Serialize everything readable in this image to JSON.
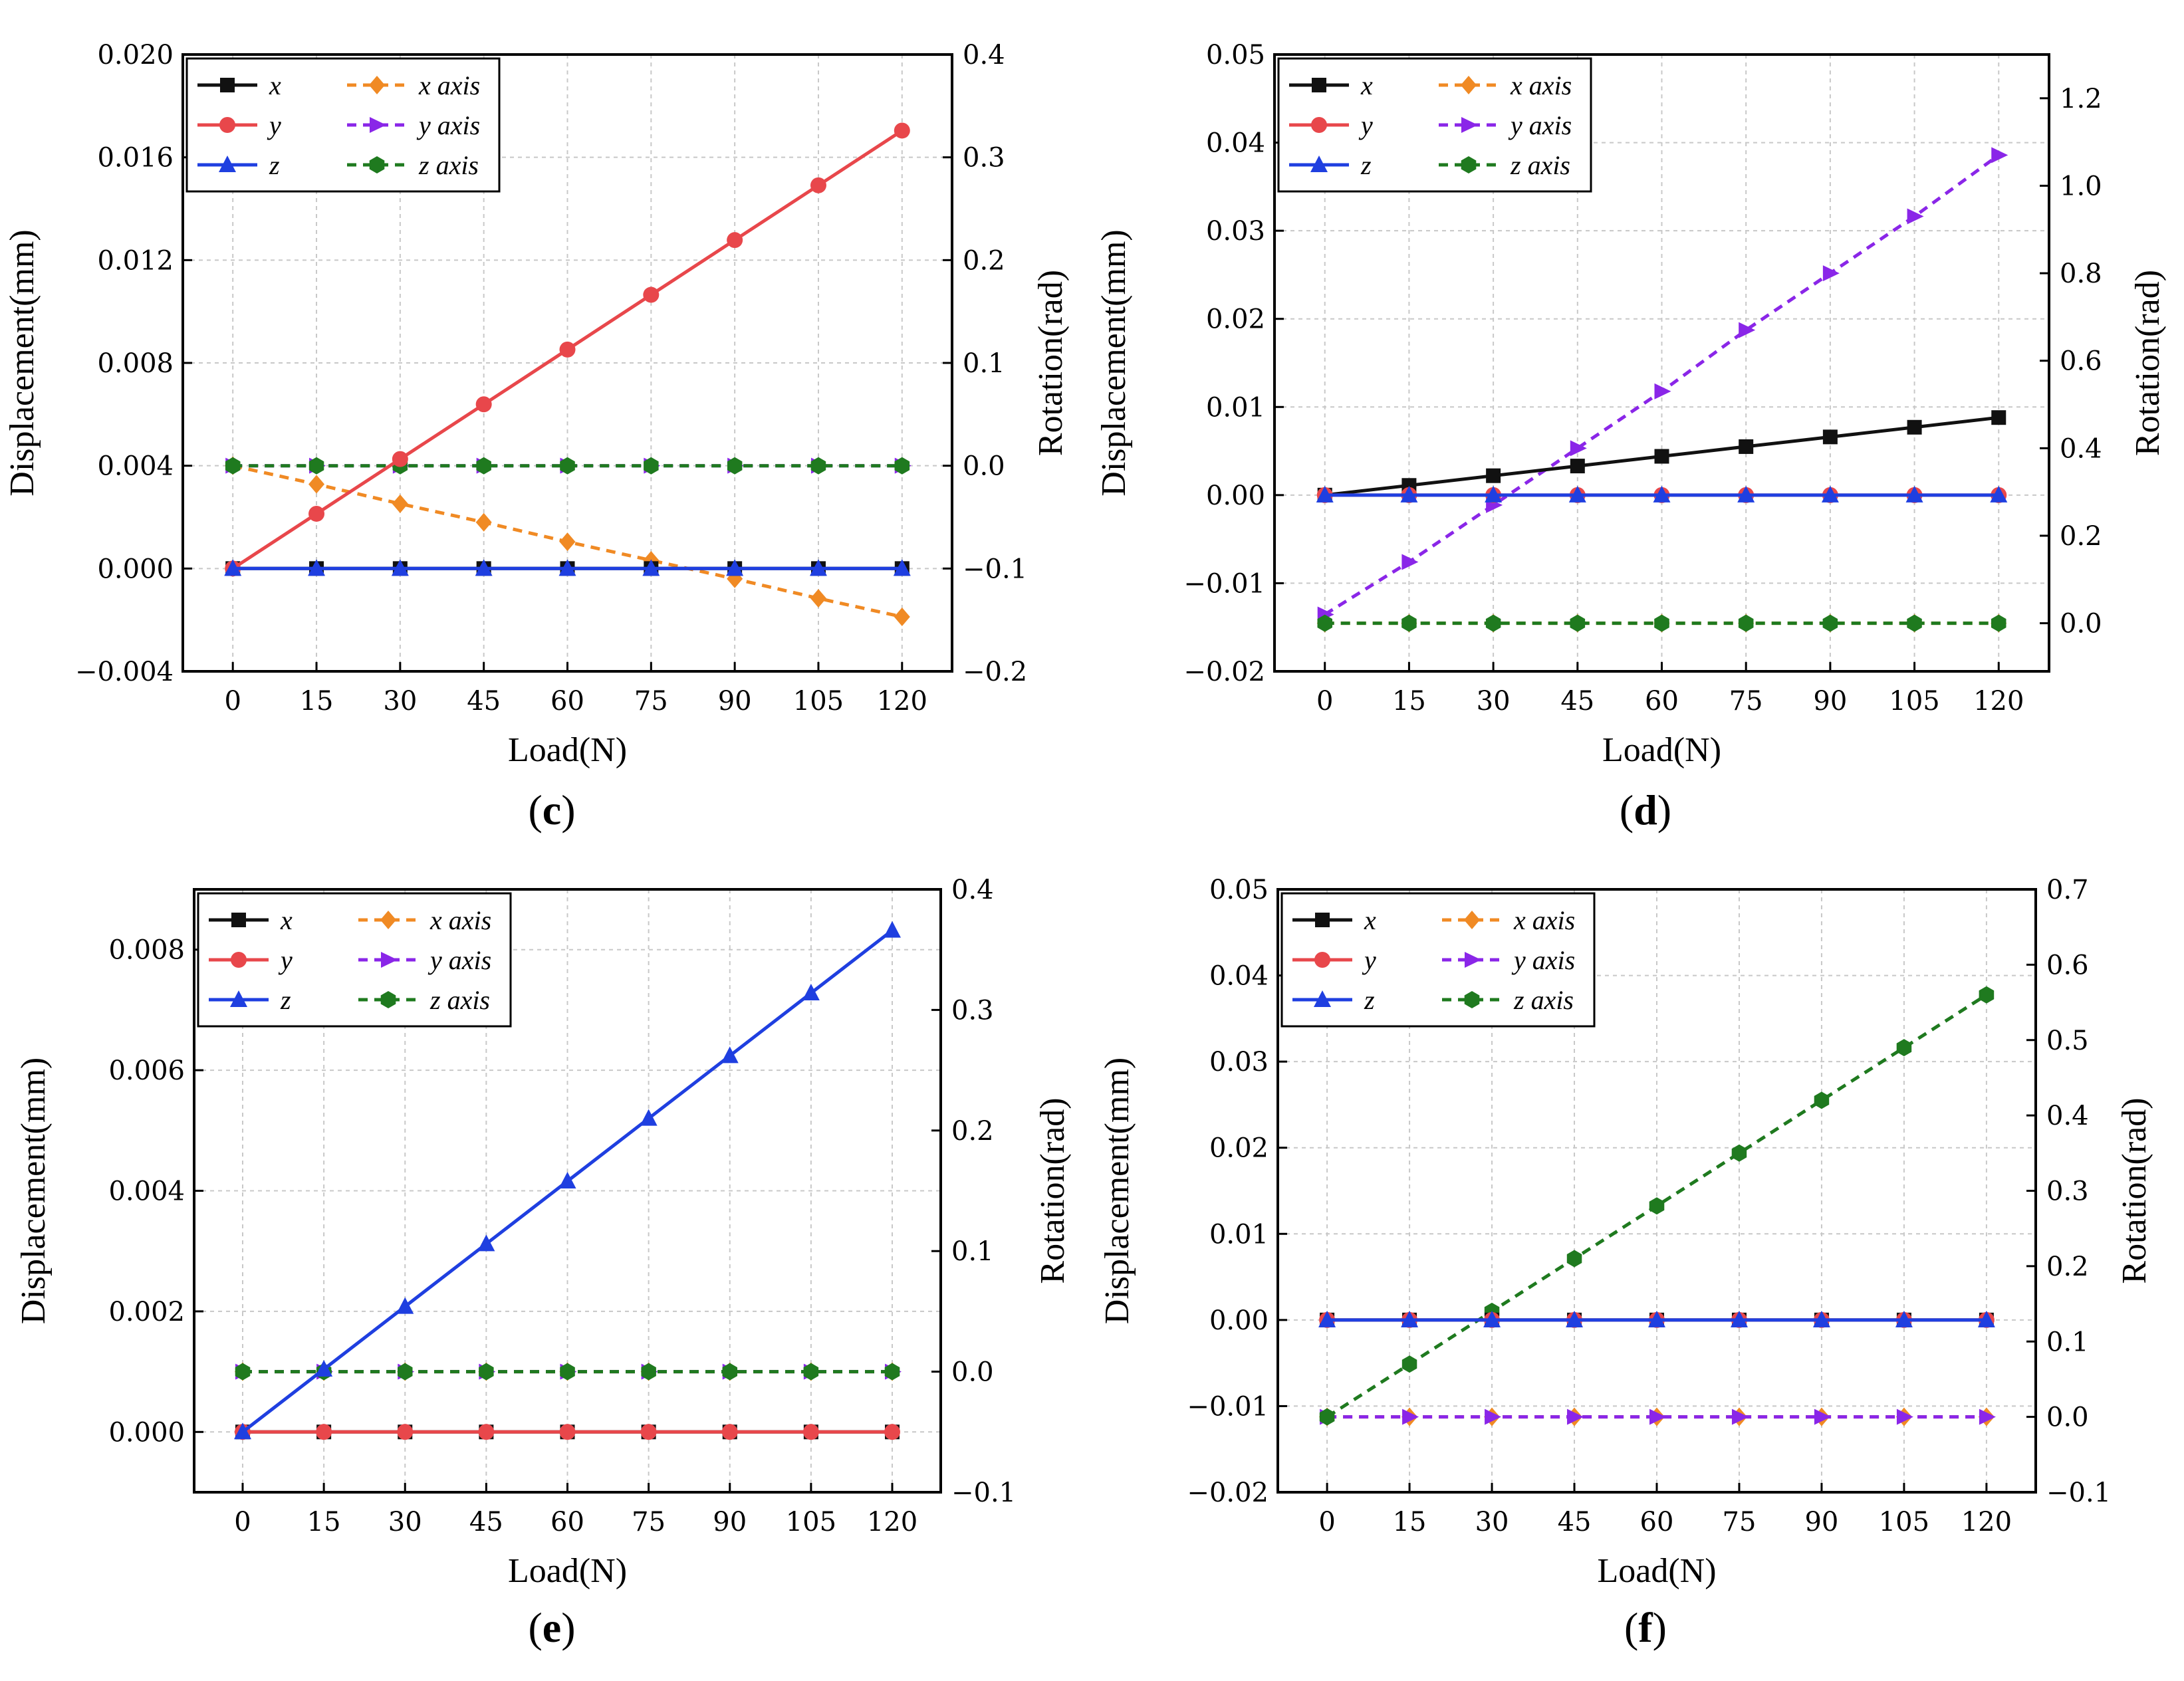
{
  "figure": {
    "background": "#ffffff"
  },
  "styles": {
    "x": {
      "color": "#111111",
      "marker": "square",
      "dashed": false
    },
    "y": {
      "color": "#e8474b",
      "marker": "circle",
      "dashed": false
    },
    "z": {
      "color": "#1f3fe0",
      "marker": "triangle",
      "dashed": false
    },
    "x axis": {
      "color": "#f08a24",
      "marker": "diamond",
      "dashed": true
    },
    "y axis": {
      "color": "#8a26e8",
      "marker": "arrow",
      "dashed": true
    },
    "z axis": {
      "color": "#1f7a1f",
      "marker": "hexagon",
      "dashed": true
    }
  },
  "chart_data": [
    {
      "caption": "c",
      "type": "line",
      "xlabel": "Load(N)",
      "ylabel": "Displacement(mm)",
      "y2label": "Rotation(rad)",
      "categories": [
        "0",
        "15",
        "30",
        "45",
        "60",
        "75",
        "90",
        "105",
        "120"
      ],
      "x": [
        0,
        15,
        30,
        45,
        60,
        75,
        90,
        105,
        120
      ],
      "ylim": [
        -0.004,
        0.02
      ],
      "yticks": [
        "−0.004",
        "0.000",
        "0.004",
        "0.008",
        "0.012",
        "0.016",
        "0.020"
      ],
      "yticks_values": [
        -0.004,
        0.0,
        0.004,
        0.008,
        0.012,
        0.016,
        0.02
      ],
      "y2lim": [
        -0.2,
        0.4
      ],
      "y2ticks": [
        "−0.2",
        "−0.1",
        "0.0",
        "0.1",
        "0.2",
        "0.3",
        "0.4"
      ],
      "y2ticks_values": [
        -0.2,
        -0.1,
        0.0,
        0.1,
        0.2,
        0.3,
        0.4
      ],
      "legend": {
        "position": "top-left",
        "entries": [
          "x",
          "y",
          "z",
          "x axis",
          "y axis",
          "z axis"
        ]
      },
      "series": [
        {
          "name": "x",
          "axis": "left",
          "values": [
            0,
            0,
            0,
            0,
            0,
            0,
            0,
            0,
            0
          ]
        },
        {
          "name": "y",
          "axis": "left",
          "values": [
            0,
            0.00213,
            0.00426,
            0.00639,
            0.00852,
            0.01065,
            0.01278,
            0.01491,
            0.01704
          ]
        },
        {
          "name": "z",
          "axis": "left",
          "values": [
            0,
            0,
            0,
            0,
            0,
            0,
            0,
            0,
            0
          ]
        },
        {
          "name": "x axis",
          "axis": "right",
          "values": [
            0,
            -0.018,
            -0.037,
            -0.055,
            -0.074,
            -0.092,
            -0.11,
            -0.129,
            -0.147
          ]
        },
        {
          "name": "y axis",
          "axis": "right",
          "values": [
            0,
            0,
            0,
            0,
            0,
            0,
            0,
            0,
            0
          ]
        },
        {
          "name": "z axis",
          "axis": "right",
          "values": [
            0,
            0,
            0,
            0,
            0,
            0,
            0,
            0,
            0
          ]
        }
      ]
    },
    {
      "caption": "d",
      "type": "line",
      "xlabel": "Load(N)",
      "ylabel": "Displacement(mm)",
      "y2label": "Rotation(rad)",
      "categories": [
        "0",
        "15",
        "30",
        "45",
        "60",
        "75",
        "90",
        "105",
        "120"
      ],
      "x": [
        0,
        15,
        30,
        45,
        60,
        75,
        90,
        105,
        120
      ],
      "ylim": [
        -0.02,
        0.05
      ],
      "yticks": [
        "−0.02",
        "−0.01",
        "0.00",
        "0.01",
        "0.02",
        "0.03",
        "0.04",
        "0.05"
      ],
      "yticks_values": [
        -0.02,
        -0.01,
        0.0,
        0.01,
        0.02,
        0.03,
        0.04,
        0.05
      ],
      "y2lim": [
        -0.11,
        1.3
      ],
      "y2ticks": [
        "0.0",
        "0.2",
        "0.4",
        "0.6",
        "0.8",
        "1.0",
        "1.2"
      ],
      "y2ticks_values": [
        0.0,
        0.2,
        0.4,
        0.6,
        0.8,
        1.0,
        1.2
      ],
      "legend": {
        "position": "top-left",
        "entries": [
          "x",
          "y",
          "z",
          "x axis",
          "y axis",
          "z axis"
        ]
      },
      "series": [
        {
          "name": "x",
          "axis": "left",
          "values": [
            0,
            0.0011,
            0.0022,
            0.0033,
            0.0044,
            0.0055,
            0.0066,
            0.0077,
            0.0088
          ]
        },
        {
          "name": "y",
          "axis": "left",
          "values": [
            0,
            0,
            0,
            0,
            0,
            0,
            0,
            0,
            0
          ]
        },
        {
          "name": "z",
          "axis": "left",
          "values": [
            0,
            0,
            0,
            0,
            0,
            0,
            0,
            0,
            0
          ]
        },
        {
          "name": "x axis",
          "axis": "right",
          "values": [
            0,
            0,
            0,
            0,
            0,
            0,
            0,
            0,
            0
          ]
        },
        {
          "name": "y axis",
          "axis": "right",
          "values": [
            0.02,
            0.14,
            0.27,
            0.4,
            0.53,
            0.67,
            0.8,
            0.93,
            1.07
          ]
        },
        {
          "name": "z axis",
          "axis": "right",
          "values": [
            0,
            0,
            0,
            0,
            0,
            0,
            0,
            0,
            0
          ]
        }
      ]
    },
    {
      "caption": "e",
      "type": "line",
      "xlabel": "Load(N)",
      "ylabel": "Displacement(mm)",
      "y2label": "Rotation(rad)",
      "categories": [
        "0",
        "15",
        "30",
        "45",
        "60",
        "75",
        "90",
        "105",
        "120"
      ],
      "x": [
        0,
        15,
        30,
        45,
        60,
        75,
        90,
        105,
        120
      ],
      "ylim": [
        -0.001,
        0.009
      ],
      "yticks": [
        "0.000",
        "0.002",
        "0.004",
        "0.006",
        "0.008"
      ],
      "yticks_values": [
        0.0,
        0.002,
        0.004,
        0.006,
        0.008
      ],
      "y2lim": [
        -0.1,
        0.4
      ],
      "y2ticks": [
        "−0.1",
        "0.0",
        "0.1",
        "0.2",
        "0.3",
        "0.4"
      ],
      "y2ticks_values": [
        -0.1,
        0.0,
        0.1,
        0.2,
        0.3,
        0.4
      ],
      "legend": {
        "position": "top-left",
        "entries": [
          "x",
          "y",
          "z",
          "x axis",
          "y axis",
          "z axis"
        ]
      },
      "series": [
        {
          "name": "x",
          "axis": "left",
          "values": [
            0,
            0,
            0,
            0,
            0,
            0,
            0,
            0,
            0
          ]
        },
        {
          "name": "y",
          "axis": "left",
          "values": [
            0,
            0,
            0,
            0,
            0,
            0,
            0,
            0,
            0
          ]
        },
        {
          "name": "z",
          "axis": "left",
          "values": [
            0,
            0.00104,
            0.00208,
            0.00312,
            0.00416,
            0.0052,
            0.00624,
            0.00728,
            0.00832
          ]
        },
        {
          "name": "x axis",
          "axis": "right",
          "values": [
            0,
            0,
            0,
            0,
            0,
            0,
            0,
            0,
            0
          ]
        },
        {
          "name": "y axis",
          "axis": "right",
          "values": [
            0,
            0,
            0,
            0,
            0,
            0,
            0,
            0,
            0
          ]
        },
        {
          "name": "z axis",
          "axis": "right",
          "values": [
            0,
            0,
            0,
            0,
            0,
            0,
            0,
            0,
            0
          ]
        }
      ]
    },
    {
      "caption": "f",
      "type": "line",
      "xlabel": "Load(N)",
      "ylabel": "Displacement(mm)",
      "y2label": "Rotation(rad)",
      "categories": [
        "0",
        "15",
        "30",
        "45",
        "60",
        "75",
        "90",
        "105",
        "120"
      ],
      "x": [
        0,
        15,
        30,
        45,
        60,
        75,
        90,
        105,
        120
      ],
      "ylim": [
        -0.02,
        0.05
      ],
      "yticks": [
        "−0.02",
        "−0.01",
        "0.00",
        "0.01",
        "0.02",
        "0.03",
        "0.04",
        "0.05"
      ],
      "yticks_values": [
        -0.02,
        -0.01,
        0.0,
        0.01,
        0.02,
        0.03,
        0.04,
        0.05
      ],
      "y2lim": [
        -0.1,
        0.7
      ],
      "y2ticks": [
        "−0.1",
        "0.0",
        "0.1",
        "0.2",
        "0.3",
        "0.4",
        "0.5",
        "0.6",
        "0.7"
      ],
      "y2ticks_values": [
        -0.1,
        0.0,
        0.1,
        0.2,
        0.3,
        0.4,
        0.5,
        0.6,
        0.7
      ],
      "legend": {
        "position": "top-left",
        "entries": [
          "x",
          "y",
          "z",
          "x axis",
          "y axis",
          "z axis"
        ]
      },
      "series": [
        {
          "name": "x",
          "axis": "left",
          "values": [
            0,
            0,
            0,
            0,
            0,
            0,
            0,
            0,
            0
          ]
        },
        {
          "name": "y",
          "axis": "left",
          "values": [
            0,
            0,
            0,
            0,
            0,
            0,
            0,
            0,
            0
          ]
        },
        {
          "name": "z",
          "axis": "left",
          "values": [
            0,
            0,
            0,
            0,
            0,
            0,
            0,
            0,
            0
          ]
        },
        {
          "name": "x axis",
          "axis": "right",
          "values": [
            0,
            0,
            0,
            0,
            0,
            0,
            0,
            0,
            0
          ]
        },
        {
          "name": "y axis",
          "axis": "right",
          "values": [
            0,
            0,
            0,
            0,
            0,
            0,
            0,
            0,
            0
          ]
        },
        {
          "name": "z axis",
          "axis": "right",
          "values": [
            0,
            0.07,
            0.14,
            0.21,
            0.28,
            0.35,
            0.42,
            0.49,
            0.56
          ]
        }
      ]
    }
  ]
}
